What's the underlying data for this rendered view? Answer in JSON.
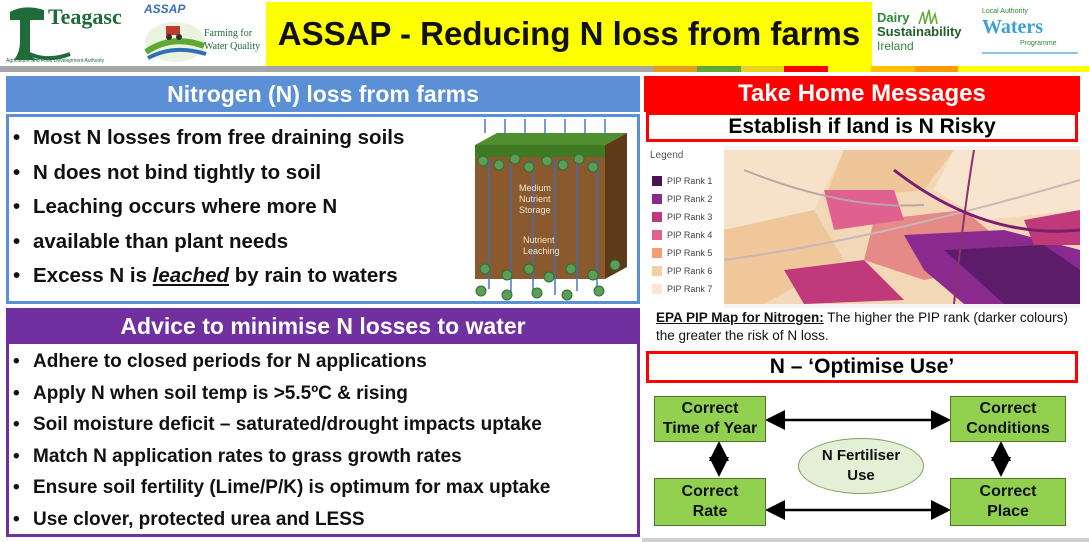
{
  "header": {
    "teagasc_logo": "Teagasc",
    "teagasc_tagline": "Agriculture and Food Development Authority",
    "assap_logo": "ASSAP",
    "assap_tagline_1": "Farming for",
    "assap_tagline_2": "Water Quality",
    "title": "ASSAP - Reducing N loss from farms",
    "dairy_logo_1": "Dairy",
    "dairy_logo_2": "Sustainability",
    "dairy_logo_3": "Ireland",
    "waters_logo_top": "Local Authority",
    "waters_logo_main": "Waters",
    "waters_logo_sub": "Programme",
    "strip_colors": [
      "#a6a6a6",
      "#a6a6a6",
      "#a6a6a6",
      "#a6a6a6",
      "#a6a6a6",
      "#a6a6a6",
      "#a6a6a6",
      "#a6a6a6",
      "#a6a6a6",
      "#a6a6a6",
      "#a6a6a6",
      "#a6a6a6",
      "#a6a6a6",
      "#a6a6a6",
      "#a6a6a6",
      "#e89a19",
      "#5fa832",
      "#e8d21a",
      "#ff0000",
      "#ffff00",
      "#ffc000",
      "#ff9b00",
      "#ffff00",
      "#ffff00",
      "#ffff00"
    ]
  },
  "loss_panel": {
    "heading": "Nitrogen (N) loss from farms",
    "bullets": [
      "Most N losses from free draining soils",
      "N does not bind tightly to soil",
      "Leaching occurs where more N",
      "available than plant needs"
    ],
    "last_bullet_prefix": "Excess N is ",
    "last_bullet_emph": "leached",
    "last_bullet_suffix": " by rain to waters",
    "figure_label_1": "Medium",
    "figure_label_2": "Nutrient",
    "figure_label_3": "Storage",
    "figure_label_4": "Nutrient",
    "figure_label_5": "Leaching",
    "n_symbol": "N"
  },
  "advice_panel": {
    "heading": "Advice to minimise N losses to water",
    "bullets": [
      "Adhere to closed periods for N applications",
      "Apply N when soil temp is >5.5ºC & rising",
      "Soil moisture deficit – saturated/drought impacts uptake",
      "Match N application rates to grass growth rates",
      "Ensure soil fertility (Lime/P/K) is optimum for max uptake",
      "Use clover, protected urea and LESS"
    ]
  },
  "messages": {
    "heading": "Take Home Messages",
    "risky_box": "Establish if land is N Risky",
    "legend_title": "Legend",
    "legend": [
      {
        "label": "PIP Rank 1",
        "color": "#4a1450"
      },
      {
        "label": "PIP Rank 2",
        "color": "#8a2a8e"
      },
      {
        "label": "PIP Rank 3",
        "color": "#c0397a"
      },
      {
        "label": "PIP Rank 4",
        "color": "#e0608f"
      },
      {
        "label": "PIP Rank 5",
        "color": "#f0a070"
      },
      {
        "label": "PIP Rank 6",
        "color": "#f5cfa3"
      },
      {
        "label": "PIP Rank 7",
        "color": "#f8e6cf"
      }
    ],
    "caption_bold": "EPA PIP Map for Nitrogen:",
    "caption_rest": " The higher the PIP rank (darker colours) the greater the risk of N loss.",
    "optimise_box": "N – ‘Optimise Use’"
  },
  "flow": {
    "time_1": "Correct",
    "time_2": "Time of Year",
    "cond_1": "Correct",
    "cond_2": "Conditions",
    "rate_1": "Correct",
    "rate_2": "Rate",
    "place_1": "Correct",
    "place_2": "Place",
    "center_1": "N Fertiliser",
    "center_2": "Use"
  }
}
